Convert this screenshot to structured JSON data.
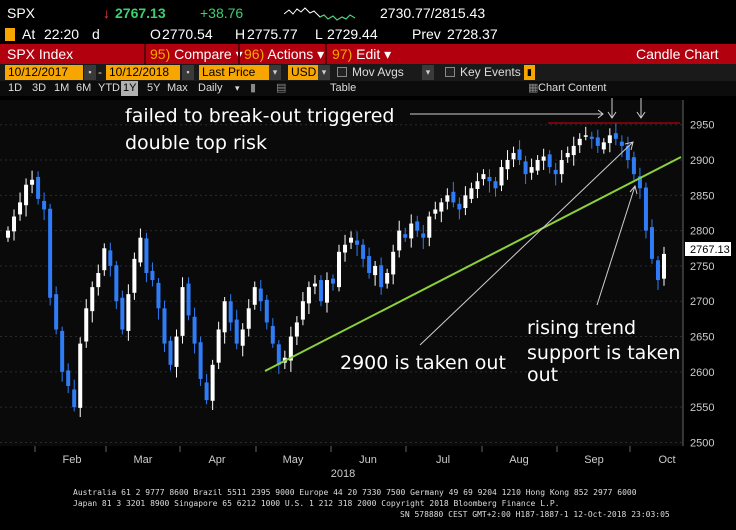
{
  "header": {
    "ticker": "SPX",
    "arrow": "↓",
    "last": "2767.13",
    "change": "+38.76",
    "range": "2730.77/2815.43",
    "at_label": "At",
    "time": "22:20",
    "d": "d",
    "open_label": "O",
    "open": "2770.54",
    "high_label": "H",
    "high": "2775.77",
    "low_label": "L",
    "low": "2729.44",
    "prev_label": "Prev",
    "prev": "2728.37"
  },
  "toolbar": {
    "title": "SPX Index",
    "compare_num": "95)",
    "compare": "Compare",
    "actions_num": "96)",
    "actions": "Actions",
    "edit_num": "97)",
    "edit": "Edit",
    "chart_type": "Candle Chart"
  },
  "controls": {
    "start_date": "10/12/2017",
    "end_date": "10/12/2018",
    "field": "Last Price",
    "currency": "USD",
    "mov_avgs": "Mov Avgs",
    "key_events": "Key Events"
  },
  "periods": [
    "1D",
    "3D",
    "1M",
    "6M",
    "YTD",
    "1Y",
    "5Y",
    "Max"
  ],
  "selected_period": "1Y",
  "freq": "Daily",
  "table_label": "Table",
  "chart_content_label": "Chart Content",
  "chart_data": {
    "type": "candlestick",
    "x_months": [
      "Feb",
      "Mar",
      "Apr",
      "May",
      "Jun",
      "Jul",
      "Aug",
      "Sep",
      "Oct"
    ],
    "x_year": "2018",
    "y_ticks": [
      2500,
      2550,
      2600,
      2650,
      2700,
      2750,
      2800,
      2850,
      2900,
      2950
    ],
    "ylim": [
      2495,
      2985
    ],
    "last_price_label": "2767.13",
    "series_close": [
      2800,
      2820,
      2840,
      2865,
      2872,
      2845,
      2830,
      2705,
      2660,
      2600,
      2580,
      2550,
      2640,
      2690,
      2720,
      2740,
      2775,
      2750,
      2700,
      2660,
      2710,
      2760,
      2790,
      2740,
      2730,
      2690,
      2640,
      2610,
      2650,
      2720,
      2680,
      2640,
      2590,
      2560,
      2610,
      2660,
      2700,
      2670,
      2640,
      2660,
      2690,
      2720,
      2700,
      2670,
      2640,
      2610,
      2620,
      2650,
      2670,
      2700,
      2720,
      2725,
      2700,
      2730,
      2725,
      2770,
      2780,
      2790,
      2780,
      2760,
      2740,
      2750,
      2720,
      2740,
      2770,
      2800,
      2790,
      2810,
      2800,
      2790,
      2820,
      2830,
      2840,
      2850,
      2840,
      2830,
      2850,
      2860,
      2870,
      2880,
      2870,
      2860,
      2890,
      2900,
      2910,
      2900,
      2880,
      2890,
      2900,
      2905,
      2890,
      2880,
      2900,
      2910,
      2920,
      2930,
      2935,
      2930,
      2920,
      2925,
      2935,
      2930,
      2920,
      2900,
      2880,
      2860,
      2800,
      2760,
      2730,
      2767
    ]
  },
  "annotations": {
    "line1": "failed to break-out triggered",
    "line2": "double top risk",
    "takeout": "2900 is taken out",
    "rise1": "rising trend",
    "rise2": "support is taken",
    "rise3": "out"
  },
  "footer": {
    "line1": "Australia 61 2 9777 8600 Brazil 5511 2395 9000 Europe 44 20 7330 7500 Germany 49 69 9204 1210 Hong Kong 852 2977 6000",
    "line2": "Japan 81 3 3201 8900       Singapore 65 6212 1000       U.S. 1 212 318 2000                    Copyright 2018 Bloomberg Finance L.P.",
    "line3": "SN 578880 CEST GMT+2:00 H187-1887-1 12-Oct-2018 23:03:05"
  },
  "colors": {
    "bg": "#000000",
    "toolbar": "#b3000f",
    "accent": "#f7a600",
    "up": "#ffffff",
    "down": "#2f7cf6",
    "trend": "#8cd13a",
    "double_top": "#b3000f"
  }
}
